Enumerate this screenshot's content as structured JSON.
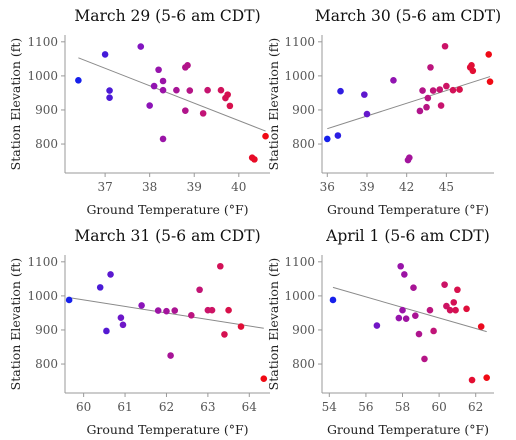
{
  "chart_data": [
    {
      "type": "scatter",
      "title": "March 29 (5-6 am CDT)",
      "xlabel": "Ground Temperature (°F)",
      "ylabel": "Station Elevation (ft)",
      "xlim": [
        36.1,
        40.7
      ],
      "ylim": [
        715,
        1120
      ],
      "xticks": [
        37,
        38,
        39,
        40
      ],
      "yticks": [
        800,
        900,
        1000,
        1100
      ],
      "trendline": [
        [
          36.4,
          1053
        ],
        [
          40.6,
          838
        ]
      ],
      "points": [
        {
          "x": 36.4,
          "y": 987
        },
        {
          "x": 37.0,
          "y": 1063
        },
        {
          "x": 37.1,
          "y": 957
        },
        {
          "x": 37.1,
          "y": 936
        },
        {
          "x": 37.8,
          "y": 1086
        },
        {
          "x": 38.0,
          "y": 913
        },
        {
          "x": 38.1,
          "y": 970
        },
        {
          "x": 38.2,
          "y": 1018
        },
        {
          "x": 38.3,
          "y": 985
        },
        {
          "x": 38.3,
          "y": 958
        },
        {
          "x": 38.3,
          "y": 815
        },
        {
          "x": 38.6,
          "y": 958
        },
        {
          "x": 38.8,
          "y": 1025
        },
        {
          "x": 38.85,
          "y": 1031
        },
        {
          "x": 38.8,
          "y": 898
        },
        {
          "x": 38.9,
          "y": 957
        },
        {
          "x": 39.2,
          "y": 890
        },
        {
          "x": 39.3,
          "y": 958
        },
        {
          "x": 39.6,
          "y": 958
        },
        {
          "x": 39.7,
          "y": 935
        },
        {
          "x": 39.75,
          "y": 945
        },
        {
          "x": 39.8,
          "y": 912
        },
        {
          "x": 40.3,
          "y": 760
        },
        {
          "x": 40.35,
          "y": 755
        },
        {
          "x": 40.6,
          "y": 823
        }
      ]
    },
    {
      "type": "scatter",
      "title": "March 30 (5-6 am CDT)",
      "xlabel": "Ground Temperature (°F)",
      "ylabel": "Station Elevation (ft)",
      "xlim": [
        35.6,
        48.6
      ],
      "ylim": [
        715,
        1120
      ],
      "xticks": [
        36,
        39,
        42,
        45
      ],
      "yticks": [
        800,
        900,
        1000,
        1100
      ],
      "trendline": [
        [
          36.0,
          845
        ],
        [
          48.3,
          998
        ]
      ],
      "points": [
        {
          "x": 36.0,
          "y": 815
        },
        {
          "x": 36.8,
          "y": 825
        },
        {
          "x": 37.0,
          "y": 955
        },
        {
          "x": 38.8,
          "y": 945
        },
        {
          "x": 39.0,
          "y": 888
        },
        {
          "x": 41.0,
          "y": 987
        },
        {
          "x": 42.1,
          "y": 753
        },
        {
          "x": 42.2,
          "y": 760
        },
        {
          "x": 43.0,
          "y": 897
        },
        {
          "x": 43.2,
          "y": 957
        },
        {
          "x": 43.5,
          "y": 908
        },
        {
          "x": 43.6,
          "y": 935
        },
        {
          "x": 43.8,
          "y": 1025
        },
        {
          "x": 44.0,
          "y": 957
        },
        {
          "x": 44.5,
          "y": 960
        },
        {
          "x": 44.6,
          "y": 913
        },
        {
          "x": 44.9,
          "y": 1087
        },
        {
          "x": 45.0,
          "y": 970
        },
        {
          "x": 45.5,
          "y": 958
        },
        {
          "x": 46.0,
          "y": 960
        },
        {
          "x": 46.8,
          "y": 1025
        },
        {
          "x": 46.9,
          "y": 1031
        },
        {
          "x": 47.0,
          "y": 1015
        },
        {
          "x": 48.2,
          "y": 1063
        },
        {
          "x": 48.3,
          "y": 983
        }
      ]
    },
    {
      "type": "scatter",
      "title": "March 31 (5-6 am CDT)",
      "xlabel": "Ground Temperature (°F)",
      "ylabel": "Station Elevation (ft)",
      "xlim": [
        59.55,
        64.5
      ],
      "ylim": [
        715,
        1120
      ],
      "xticks": [
        60,
        61,
        62,
        63,
        64
      ],
      "yticks": [
        800,
        900,
        1000,
        1100
      ],
      "trendline": [
        [
          59.65,
          995
        ],
        [
          64.35,
          905
        ]
      ],
      "points": [
        {
          "x": 59.65,
          "y": 988
        },
        {
          "x": 60.4,
          "y": 1025
        },
        {
          "x": 60.55,
          "y": 897
        },
        {
          "x": 60.65,
          "y": 1063
        },
        {
          "x": 60.9,
          "y": 936
        },
        {
          "x": 60.95,
          "y": 915
        },
        {
          "x": 61.4,
          "y": 972
        },
        {
          "x": 61.8,
          "y": 957
        },
        {
          "x": 62.0,
          "y": 955
        },
        {
          "x": 62.1,
          "y": 825
        },
        {
          "x": 62.2,
          "y": 957
        },
        {
          "x": 62.6,
          "y": 943
        },
        {
          "x": 62.8,
          "y": 1018
        },
        {
          "x": 63.0,
          "y": 958
        },
        {
          "x": 63.1,
          "y": 958
        },
        {
          "x": 63.3,
          "y": 1087
        },
        {
          "x": 63.4,
          "y": 887
        },
        {
          "x": 63.5,
          "y": 958
        },
        {
          "x": 63.8,
          "y": 910
        },
        {
          "x": 64.35,
          "y": 757
        }
      ]
    },
    {
      "type": "scatter",
      "title": "April 1 (5-6 am CDT)",
      "xlabel": "Ground Temperature (°F)",
      "ylabel": "Station Elevation (ft)",
      "xlim": [
        53.6,
        63.0
      ],
      "ylim": [
        715,
        1120
      ],
      "xticks": [
        54,
        56,
        58,
        60,
        62
      ],
      "yticks": [
        800,
        900,
        1000,
        1100
      ],
      "trendline": [
        [
          54.2,
          1025
        ],
        [
          62.6,
          895
        ]
      ],
      "points": [
        {
          "x": 54.2,
          "y": 988
        },
        {
          "x": 56.6,
          "y": 913
        },
        {
          "x": 57.8,
          "y": 935
        },
        {
          "x": 57.9,
          "y": 1087
        },
        {
          "x": 58.0,
          "y": 958
        },
        {
          "x": 58.1,
          "y": 1063
        },
        {
          "x": 58.2,
          "y": 933
        },
        {
          "x": 58.6,
          "y": 1024
        },
        {
          "x": 58.7,
          "y": 942
        },
        {
          "x": 58.9,
          "y": 888
        },
        {
          "x": 59.2,
          "y": 815
        },
        {
          "x": 59.5,
          "y": 958
        },
        {
          "x": 59.7,
          "y": 897
        },
        {
          "x": 60.3,
          "y": 1033
        },
        {
          "x": 60.4,
          "y": 970
        },
        {
          "x": 60.6,
          "y": 958
        },
        {
          "x": 60.8,
          "y": 981
        },
        {
          "x": 60.9,
          "y": 958
        },
        {
          "x": 61.0,
          "y": 1018
        },
        {
          "x": 61.5,
          "y": 962
        },
        {
          "x": 61.8,
          "y": 753
        },
        {
          "x": 62.3,
          "y": 910
        },
        {
          "x": 62.6,
          "y": 760
        }
      ]
    }
  ]
}
